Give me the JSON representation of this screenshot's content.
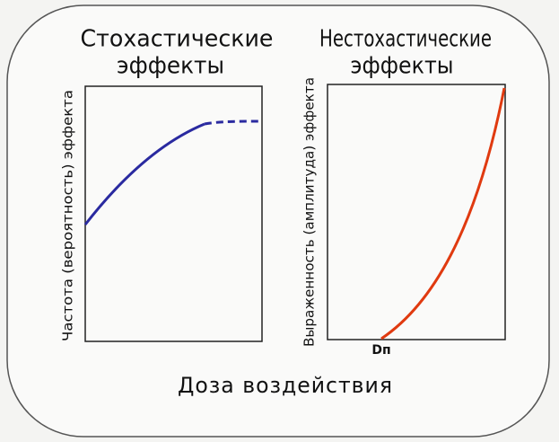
{
  "panels": [
    {
      "title": [
        "Стохастические",
        "эффекты"
      ],
      "y_label": "Частота (вероятность) эффекта"
    },
    {
      "title": [
        "Нестохастические",
        "эффекты"
      ],
      "y_label": "Выраженность (амплитуда) эффекта",
      "origin_label": "Dп"
    }
  ],
  "x_label": "Доза воздействия"
}
